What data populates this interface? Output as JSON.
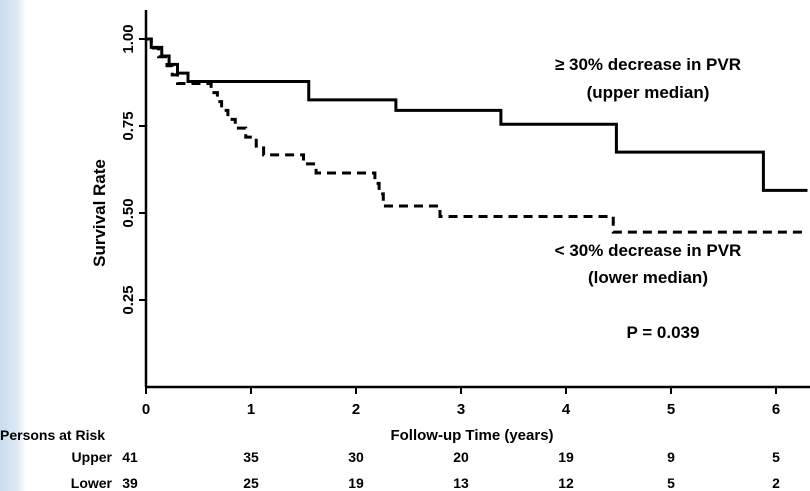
{
  "chart_data": {
    "type": "line",
    "xlabel": "Follow-up Time (years)",
    "ylabel": "Survival Rate",
    "xlim": [
      0,
      6.3
    ],
    "ylim": [
      0,
      1.0
    ],
    "x_ticks": [
      "0",
      "1",
      "2",
      "3",
      "4",
      "5",
      "6"
    ],
    "y_ticks": [
      "0.25",
      "0.50",
      "0.75",
      "1.00"
    ],
    "grid": false,
    "series": [
      {
        "name": "≥ 30% decrease in PVR (upper median)",
        "line_style": "solid",
        "points": [
          [
            0,
            1.0
          ],
          [
            0.05,
            0.976
          ],
          [
            0.15,
            0.951
          ],
          [
            0.22,
            0.927
          ],
          [
            0.3,
            0.902
          ],
          [
            0.4,
            0.878
          ],
          [
            1.1,
            0.878
          ],
          [
            1.5,
            0.878
          ],
          [
            1.55,
            0.825
          ],
          [
            2.35,
            0.825
          ],
          [
            2.38,
            0.795
          ],
          [
            3.35,
            0.795
          ],
          [
            3.38,
            0.755
          ],
          [
            4.45,
            0.755
          ],
          [
            4.48,
            0.675
          ],
          [
            5.85,
            0.675
          ],
          [
            5.88,
            0.565
          ],
          [
            6.3,
            0.565
          ]
        ]
      },
      {
        "name": "< 30% decrease in PVR (lower median)",
        "line_style": "dashed",
        "points": [
          [
            0,
            1.0
          ],
          [
            0.05,
            0.974
          ],
          [
            0.12,
            0.949
          ],
          [
            0.2,
            0.923
          ],
          [
            0.25,
            0.897
          ],
          [
            0.3,
            0.872
          ],
          [
            0.6,
            0.872
          ],
          [
            0.62,
            0.846
          ],
          [
            0.68,
            0.82
          ],
          [
            0.72,
            0.795
          ],
          [
            0.78,
            0.769
          ],
          [
            0.85,
            0.744
          ],
          [
            0.95,
            0.718
          ],
          [
            1.05,
            0.692
          ],
          [
            1.12,
            0.667
          ],
          [
            1.45,
            0.667
          ],
          [
            1.5,
            0.641
          ],
          [
            1.62,
            0.615
          ],
          [
            2.12,
            0.615
          ],
          [
            2.18,
            0.585
          ],
          [
            2.22,
            0.555
          ],
          [
            2.26,
            0.52
          ],
          [
            2.75,
            0.52
          ],
          [
            2.8,
            0.49
          ],
          [
            4.42,
            0.49
          ],
          [
            4.45,
            0.445
          ],
          [
            6.3,
            0.445
          ]
        ]
      }
    ],
    "annotations": {
      "upper_line1": "≥ 30% decrease in PVR",
      "upper_line2": "(upper median)",
      "lower_line1": "< 30% decrease in PVR",
      "lower_line2": "(lower median)",
      "p_value": "P = 0.039"
    },
    "risk_table": {
      "title": "Persons at Risk",
      "rows": [
        {
          "label": "Upper",
          "values": [
            "41",
            "35",
            "30",
            "20",
            "19",
            "9",
            "5"
          ]
        },
        {
          "label": "Lower",
          "values": [
            "39",
            "25",
            "19",
            "13",
            "12",
            "5",
            "2"
          ]
        }
      ]
    }
  }
}
